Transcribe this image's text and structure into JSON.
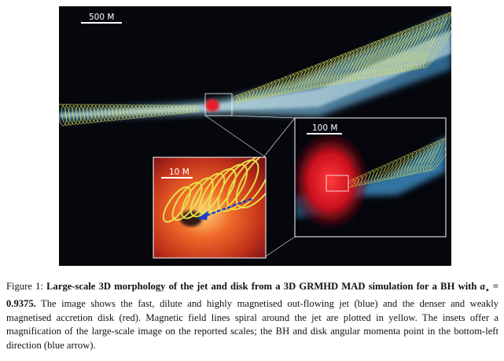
{
  "figure": {
    "scale_bars": {
      "main": "500 M",
      "inset_large": "100 M",
      "inset_small": "10 M"
    },
    "colors": {
      "background": "#05070d",
      "jet": "#4aa6d8",
      "field_lines": "#e4e35a",
      "disk": "#d8182a",
      "arrow": "#1f3bd0"
    }
  },
  "caption": {
    "label": "Figure 1: ",
    "bold": "Large-scale 3D morphology of the jet and disk from a 3D GRMHD MAD simulation for a BH with ",
    "bold_math": "a",
    "bold_math_sub": "⋆",
    "bold_math_rest": " = 0.9375.",
    "body": " The image shows the fast, dilute and highly magnetised out-flowing jet (blue) and the denser and weakly magnetised accretion disk (red). Magnetic field lines spiral around the jet are plotted in yellow. The insets offer a magnification of the large-scale image on the reported scales; the BH and disk angular momenta point in the bottom-left direction (blue arrow)."
  }
}
